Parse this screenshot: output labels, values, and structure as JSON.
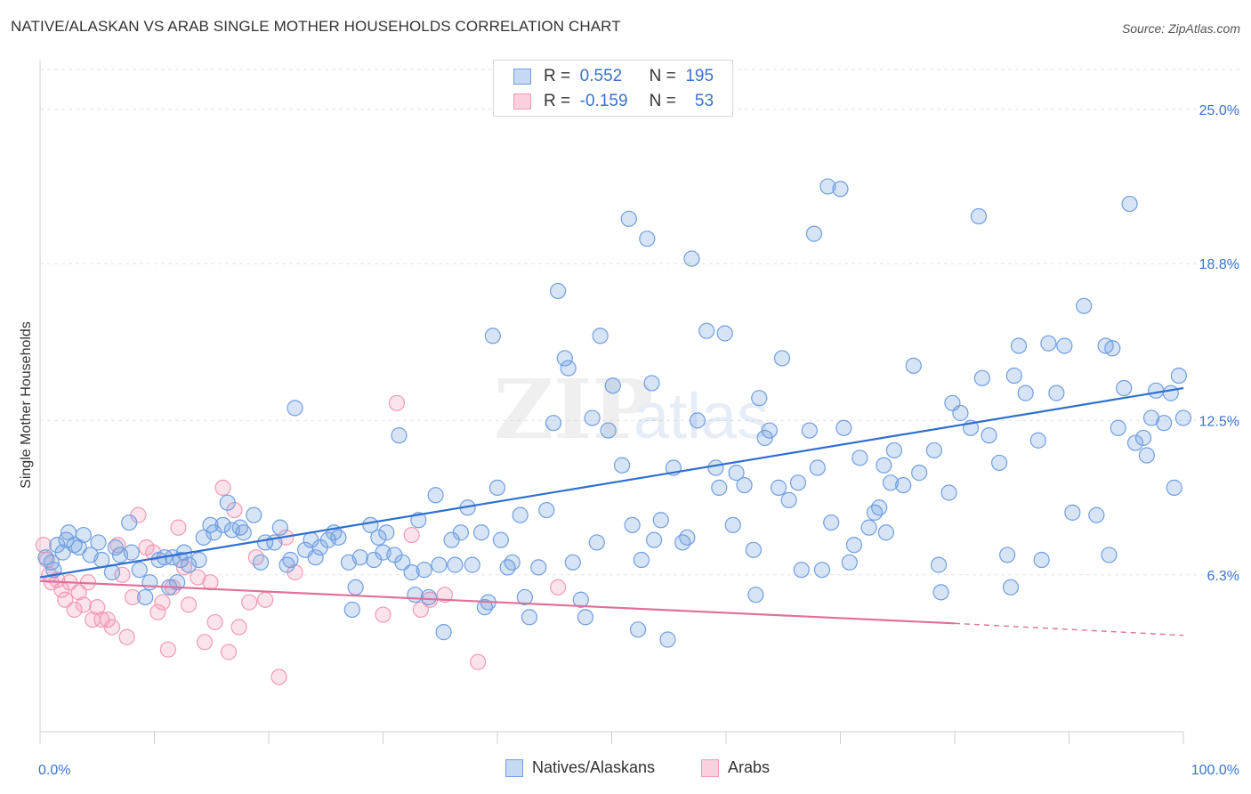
{
  "header": {
    "title": "NATIVE/ALASKAN VS ARAB SINGLE MOTHER HOUSEHOLDS CORRELATION CHART",
    "source": "Source: ZipAtlas.com"
  },
  "legend": {
    "r_label": "R =",
    "n_label": "N =",
    "rows": [
      {
        "r": "0.552",
        "n": "195",
        "color": "#6f9fe0"
      },
      {
        "r": "-0.159",
        "n": "53",
        "color": "#f29ab6"
      }
    ]
  },
  "bottom_legend": [
    {
      "label": "Natives/Alaskans",
      "color": "#6f9fe0"
    },
    {
      "label": "Arabs",
      "color": "#f29ab6"
    }
  ],
  "watermark": {
    "zip": "ZIP",
    "atlas": "atlas"
  },
  "chart_data": {
    "type": "scatter",
    "ylabel": "Single Mother Households",
    "xlabel": "",
    "xlim": [
      0,
      100
    ],
    "ylim": [
      0,
      26.6
    ],
    "x_tick_labels": [
      "0.0%",
      "100.0%"
    ],
    "y_ticks": [
      6.3,
      12.5,
      18.8,
      25.0
    ],
    "y_tick_labels": [
      "6.3%",
      "12.5%",
      "18.8%",
      "25.0%"
    ],
    "grid": true,
    "colors": {
      "natives": "#6f9fe0",
      "arabs": "#f29ab6",
      "natives_line": "#2f6fce",
      "arabs_line": "#e0709a"
    },
    "series": [
      {
        "name": "Natives/Alaskans",
        "trend": {
          "x": [
            0,
            100
          ],
          "y": [
            6.2,
            13.8
          ]
        },
        "points": [
          [
            0.5,
            7.0
          ],
          [
            1.0,
            6.8
          ],
          [
            1.2,
            6.5
          ],
          [
            1.5,
            7.5
          ],
          [
            2.0,
            7.2
          ],
          [
            2.3,
            7.7
          ],
          [
            2.5,
            8.0
          ],
          [
            3.0,
            7.5
          ],
          [
            3.4,
            7.4
          ],
          [
            3.8,
            7.9
          ],
          [
            4.4,
            7.1
          ],
          [
            5.1,
            7.6
          ],
          [
            5.4,
            6.9
          ],
          [
            6.3,
            6.4
          ],
          [
            6.6,
            7.4
          ],
          [
            7.0,
            7.1
          ],
          [
            7.8,
            8.4
          ],
          [
            8.0,
            7.2
          ],
          [
            8.7,
            6.5
          ],
          [
            9.2,
            5.4
          ],
          [
            9.6,
            6.0
          ],
          [
            10.4,
            6.9
          ],
          [
            10.9,
            7.0
          ],
          [
            11.3,
            5.8
          ],
          [
            11.6,
            7.0
          ],
          [
            12.0,
            6.0
          ],
          [
            12.3,
            6.9
          ],
          [
            12.6,
            7.2
          ],
          [
            13.0,
            6.7
          ],
          [
            13.9,
            6.9
          ],
          [
            14.3,
            7.8
          ],
          [
            14.9,
            8.3
          ],
          [
            15.2,
            8.0
          ],
          [
            16.0,
            8.3
          ],
          [
            16.4,
            9.2
          ],
          [
            16.8,
            8.1
          ],
          [
            17.5,
            8.2
          ],
          [
            17.8,
            8.0
          ],
          [
            18.7,
            8.7
          ],
          [
            19.3,
            6.8
          ],
          [
            19.7,
            7.6
          ],
          [
            20.5,
            7.6
          ],
          [
            21.0,
            8.2
          ],
          [
            21.6,
            6.7
          ],
          [
            21.9,
            6.9
          ],
          [
            22.3,
            13.0
          ],
          [
            23.2,
            7.3
          ],
          [
            23.7,
            7.7
          ],
          [
            24.1,
            7.0
          ],
          [
            24.5,
            7.4
          ],
          [
            25.2,
            7.7
          ],
          [
            25.7,
            8.0
          ],
          [
            26.1,
            7.8
          ],
          [
            27.0,
            6.8
          ],
          [
            27.3,
            4.9
          ],
          [
            27.6,
            5.8
          ],
          [
            28.0,
            7.0
          ],
          [
            28.9,
            8.3
          ],
          [
            29.2,
            6.9
          ],
          [
            29.6,
            7.8
          ],
          [
            30.0,
            7.2
          ],
          [
            30.3,
            8.0
          ],
          [
            31.0,
            7.1
          ],
          [
            31.4,
            11.9
          ],
          [
            31.7,
            6.8
          ],
          [
            32.5,
            6.4
          ],
          [
            32.8,
            5.5
          ],
          [
            33.1,
            8.5
          ],
          [
            33.6,
            6.5
          ],
          [
            34.0,
            5.4
          ],
          [
            34.6,
            9.5
          ],
          [
            34.9,
            6.7
          ],
          [
            35.3,
            4.0
          ],
          [
            36.0,
            7.7
          ],
          [
            36.3,
            6.7
          ],
          [
            36.8,
            8.0
          ],
          [
            37.4,
            9.0
          ],
          [
            37.8,
            6.7
          ],
          [
            38.6,
            8.0
          ],
          [
            38.9,
            5.0
          ],
          [
            39.2,
            5.2
          ],
          [
            39.6,
            15.9
          ],
          [
            40.0,
            9.8
          ],
          [
            40.3,
            7.7
          ],
          [
            40.9,
            6.6
          ],
          [
            41.3,
            6.8
          ],
          [
            42.0,
            8.7
          ],
          [
            42.4,
            5.4
          ],
          [
            42.8,
            4.6
          ],
          [
            43.6,
            6.6
          ],
          [
            44.3,
            8.9
          ],
          [
            44.9,
            12.4
          ],
          [
            45.3,
            17.7
          ],
          [
            45.9,
            15.0
          ],
          [
            46.2,
            14.6
          ],
          [
            46.6,
            6.8
          ],
          [
            47.3,
            5.3
          ],
          [
            47.7,
            4.6
          ],
          [
            48.3,
            12.6
          ],
          [
            48.7,
            7.6
          ],
          [
            49.0,
            15.9
          ],
          [
            49.7,
            12.1
          ],
          [
            50.1,
            13.9
          ],
          [
            50.9,
            10.7
          ],
          [
            51.5,
            20.6
          ],
          [
            51.8,
            8.3
          ],
          [
            52.3,
            4.1
          ],
          [
            52.6,
            6.9
          ],
          [
            53.1,
            19.8
          ],
          [
            53.5,
            14.0
          ],
          [
            53.7,
            7.7
          ],
          [
            54.3,
            8.5
          ],
          [
            54.9,
            3.7
          ],
          [
            55.4,
            10.6
          ],
          [
            56.2,
            7.6
          ],
          [
            56.6,
            7.8
          ],
          [
            57.0,
            19.0
          ],
          [
            57.5,
            12.5
          ],
          [
            58.3,
            16.1
          ],
          [
            59.1,
            10.6
          ],
          [
            59.4,
            9.8
          ],
          [
            59.9,
            16.0
          ],
          [
            60.6,
            8.3
          ],
          [
            60.9,
            10.4
          ],
          [
            61.6,
            9.9
          ],
          [
            62.4,
            7.3
          ],
          [
            62.6,
            5.5
          ],
          [
            62.9,
            13.4
          ],
          [
            63.4,
            11.8
          ],
          [
            63.8,
            12.1
          ],
          [
            64.6,
            9.8
          ],
          [
            64.9,
            15.0
          ],
          [
            65.5,
            9.3
          ],
          [
            66.3,
            10.0
          ],
          [
            66.6,
            6.5
          ],
          [
            67.3,
            12.1
          ],
          [
            67.7,
            20.0
          ],
          [
            68.0,
            10.6
          ],
          [
            68.4,
            6.5
          ],
          [
            68.9,
            21.9
          ],
          [
            69.2,
            8.4
          ],
          [
            70.0,
            21.8
          ],
          [
            70.3,
            12.2
          ],
          [
            70.8,
            6.8
          ],
          [
            71.2,
            7.5
          ],
          [
            71.7,
            11.0
          ],
          [
            72.5,
            8.2
          ],
          [
            73.0,
            8.8
          ],
          [
            73.4,
            9.0
          ],
          [
            73.8,
            10.7
          ],
          [
            74.0,
            8.0
          ],
          [
            74.4,
            10.0
          ],
          [
            74.7,
            11.3
          ],
          [
            75.5,
            9.9
          ],
          [
            76.4,
            14.7
          ],
          [
            76.9,
            10.4
          ],
          [
            78.2,
            11.3
          ],
          [
            78.6,
            6.7
          ],
          [
            78.8,
            5.6
          ],
          [
            79.5,
            9.6
          ],
          [
            79.8,
            13.2
          ],
          [
            80.5,
            12.8
          ],
          [
            81.4,
            12.2
          ],
          [
            82.1,
            20.7
          ],
          [
            82.4,
            14.2
          ],
          [
            83.0,
            11.9
          ],
          [
            83.9,
            10.8
          ],
          [
            84.6,
            7.1
          ],
          [
            84.9,
            5.8
          ],
          [
            85.2,
            14.3
          ],
          [
            85.6,
            15.5
          ],
          [
            86.2,
            13.6
          ],
          [
            87.3,
            11.7
          ],
          [
            87.6,
            6.9
          ],
          [
            88.2,
            15.6
          ],
          [
            88.9,
            13.6
          ],
          [
            89.6,
            15.5
          ],
          [
            90.3,
            8.8
          ],
          [
            91.3,
            17.1
          ],
          [
            92.4,
            8.7
          ],
          [
            93.2,
            15.5
          ],
          [
            93.5,
            7.1
          ],
          [
            93.8,
            15.4
          ],
          [
            94.3,
            12.2
          ],
          [
            94.8,
            13.8
          ],
          [
            95.3,
            21.2
          ],
          [
            95.8,
            11.6
          ],
          [
            96.5,
            11.8
          ],
          [
            96.8,
            11.1
          ],
          [
            97.2,
            12.6
          ],
          [
            97.6,
            13.7
          ],
          [
            98.3,
            12.4
          ],
          [
            98.9,
            13.6
          ],
          [
            99.2,
            9.8
          ],
          [
            99.6,
            14.3
          ],
          [
            100.0,
            12.6
          ]
        ]
      },
      {
        "name": "Arabs",
        "trend": {
          "x": [
            0,
            80
          ],
          "y": [
            6.05,
            4.35
          ]
        },
        "trend_dashed": {
          "x": [
            80,
            100
          ],
          "y": [
            4.35,
            3.87
          ]
        },
        "points": [
          [
            0.3,
            7.5
          ],
          [
            0.6,
            6.9
          ],
          [
            0.8,
            6.3
          ],
          [
            1.0,
            6.0
          ],
          [
            1.5,
            6.1
          ],
          [
            1.9,
            5.7
          ],
          [
            2.2,
            5.3
          ],
          [
            2.6,
            6.0
          ],
          [
            3.0,
            4.9
          ],
          [
            3.4,
            5.6
          ],
          [
            3.8,
            5.1
          ],
          [
            4.2,
            6.0
          ],
          [
            4.6,
            4.5
          ],
          [
            5.0,
            5.0
          ],
          [
            5.4,
            4.5
          ],
          [
            5.9,
            4.5
          ],
          [
            6.3,
            4.2
          ],
          [
            6.8,
            7.5
          ],
          [
            7.2,
            6.3
          ],
          [
            7.6,
            3.8
          ],
          [
            8.1,
            5.4
          ],
          [
            8.6,
            8.7
          ],
          [
            9.3,
            7.4
          ],
          [
            9.9,
            7.2
          ],
          [
            10.3,
            4.8
          ],
          [
            10.7,
            5.2
          ],
          [
            11.2,
            3.3
          ],
          [
            11.6,
            5.8
          ],
          [
            12.1,
            8.2
          ],
          [
            12.6,
            6.6
          ],
          [
            13.0,
            5.1
          ],
          [
            13.8,
            6.2
          ],
          [
            14.4,
            3.6
          ],
          [
            14.9,
            6.0
          ],
          [
            15.3,
            4.4
          ],
          [
            16.0,
            9.8
          ],
          [
            16.5,
            3.2
          ],
          [
            17.0,
            8.9
          ],
          [
            17.4,
            4.2
          ],
          [
            18.3,
            5.2
          ],
          [
            18.9,
            7.0
          ],
          [
            19.7,
            5.3
          ],
          [
            20.9,
            2.2
          ],
          [
            21.5,
            7.8
          ],
          [
            22.3,
            6.4
          ],
          [
            30.0,
            4.7
          ],
          [
            31.2,
            13.2
          ],
          [
            32.5,
            7.9
          ],
          [
            33.3,
            4.9
          ],
          [
            34.1,
            5.3
          ],
          [
            35.4,
            5.5
          ],
          [
            38.3,
            2.8
          ],
          [
            45.3,
            5.8
          ]
        ]
      }
    ]
  }
}
